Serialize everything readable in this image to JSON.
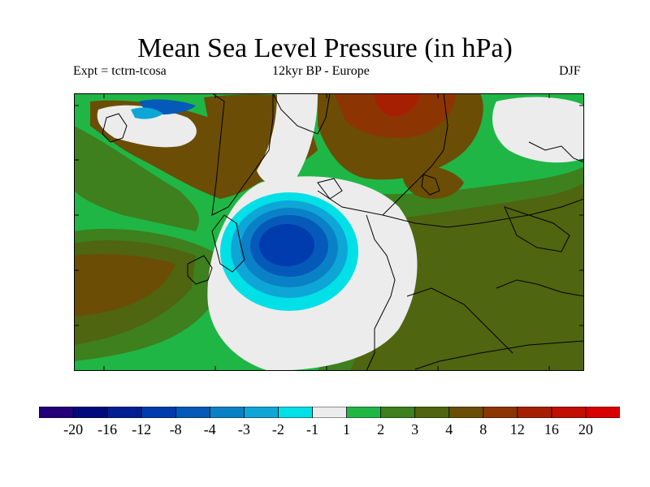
{
  "title": "Mean Sea Level Pressure (in hPa)",
  "subtitle_left": "Expt = tctrn-tcosa",
  "subtitle_center": "12kyr BP - Europe",
  "subtitle_right": "DJF",
  "colors": {
    "land_outline": "#000000",
    "frame": "#000000"
  },
  "chart_data": {
    "type": "heatmap",
    "variable": "Mean Sea Level Pressure anomaly",
    "units": "hPa",
    "region": "Europe",
    "season": "DJF",
    "features": [
      {
        "name": "low-pressure-anomaly",
        "location": "North Atlantic west of Iberia",
        "min_value": -12
      },
      {
        "name": "high-pressure-anomaly",
        "location": "Scandinavia / Baltic",
        "max_value": 12
      },
      {
        "name": "near-zero-anomaly",
        "location": "Greenland, Atlantic ring, NE Russia",
        "value": 0
      }
    ],
    "colorbar": {
      "labels": [
        "-20",
        "-16",
        "-12",
        "-8",
        "-4",
        "-3",
        "-2",
        "-1",
        "1",
        "2",
        "3",
        "4",
        "8",
        "12",
        "16",
        "20"
      ],
      "colors": [
        "#23007a",
        "#000a7c",
        "#001f93",
        "#003cad",
        "#0559b9",
        "#0a81c6",
        "#0ea6d6",
        "#00e0e6",
        "#ececec",
        "#1fb646",
        "#3e7f1e",
        "#4f650f",
        "#6b4d05",
        "#8c3503",
        "#a61f02",
        "#c20f01",
        "#d90000"
      ]
    }
  }
}
